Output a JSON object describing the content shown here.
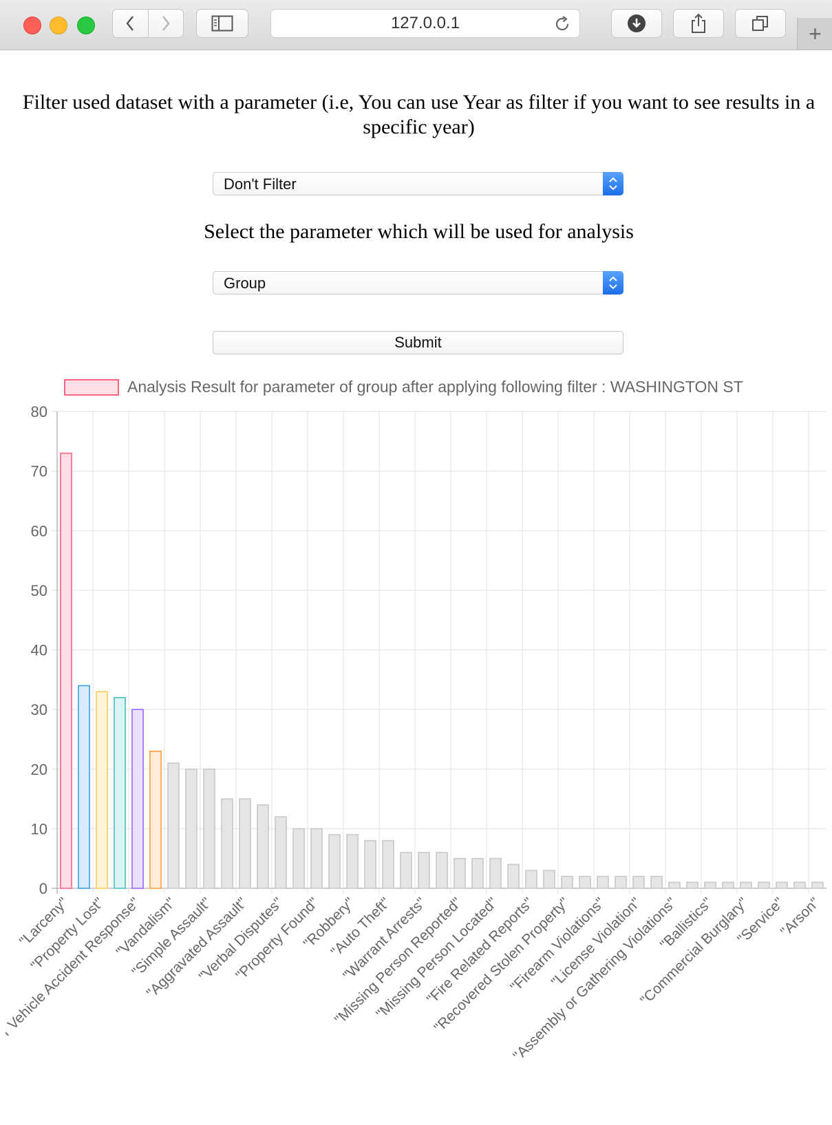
{
  "browser": {
    "address": "127.0.0.1",
    "back_icon": "chevron-left-icon",
    "forward_icon": "chevron-right-icon",
    "sidebar_icon": "sidebar-icon",
    "reload_icon": "reload-icon",
    "download_icon": "download-icon",
    "share_icon": "share-icon",
    "tabs_icon": "tabs-icon",
    "newtab_label": "+"
  },
  "form": {
    "filter_heading": "Filter used dataset with a parameter (i.e, You can use Year as filter if you want to see results in a specific year)",
    "filter_value": "Don't Filter",
    "analysis_heading": "Select the parameter which will be used for analysis",
    "analysis_value": "Group",
    "submit_label": "Submit"
  },
  "chart_data": {
    "type": "bar",
    "legend": "Analysis Result for parameter of group after applying following filter : WASHINGTON ST",
    "legend_position": "top",
    "ylim": [
      0,
      80
    ],
    "yticks": [
      0,
      10,
      20,
      30,
      40,
      50,
      60,
      70,
      80
    ],
    "grid": true,
    "categories": [
      "\"Larceny\"",
      "",
      "\"Property Lost\"",
      "",
      "\"Motor Vehicle Accident Response\"",
      "",
      "\"Vandalism\"",
      "",
      "\"Simple Assault\"",
      "",
      "\"Aggravated Assault\"",
      "",
      "\"Verbal Disputes\"",
      "",
      "\"Property Found\"",
      "",
      "\"Robbery\"",
      "",
      "\"Auto Theft\"",
      "",
      "\"Warrant Arrests\"",
      "",
      "\"Missing Person Reported\"",
      "",
      "\"Missing Person Located\"",
      "",
      "\"Fire Related Reports\"",
      "",
      "\"Recovered Stolen Property\"",
      "",
      "\"Firearm Violations\"",
      "",
      "\"License Violation\"",
      "",
      "\"Assembly or Gathering Violations\"",
      "",
      "\"Ballistics\"",
      "",
      "\"Commercial Burglary\"",
      "",
      "\"Service\"",
      "",
      "\"Arson\""
    ],
    "values": [
      73,
      34,
      33,
      32,
      30,
      23,
      21,
      20,
      20,
      15,
      15,
      14,
      12,
      10,
      10,
      9,
      9,
      8,
      8,
      6,
      6,
      6,
      5,
      5,
      5,
      4,
      3,
      3,
      2,
      2,
      2,
      2,
      2,
      2,
      1,
      1,
      1,
      1,
      1,
      1,
      1,
      1,
      1
    ],
    "bar_colors": [
      {
        "fill": "#ffdfe5",
        "stroke": "#ff6384"
      },
      {
        "fill": "#d7ebfa",
        "stroke": "#36a2eb"
      },
      {
        "fill": "#fff4da",
        "stroke": "#ffce56"
      },
      {
        "fill": "#dbf2f2",
        "stroke": "#4bc0c0"
      },
      {
        "fill": "#ebe0ff",
        "stroke": "#9966ff"
      },
      {
        "fill": "#ffecd9",
        "stroke": "#ff9f40"
      },
      {
        "fill": "#e5e5e5",
        "stroke": "#c9c9c9"
      }
    ]
  }
}
